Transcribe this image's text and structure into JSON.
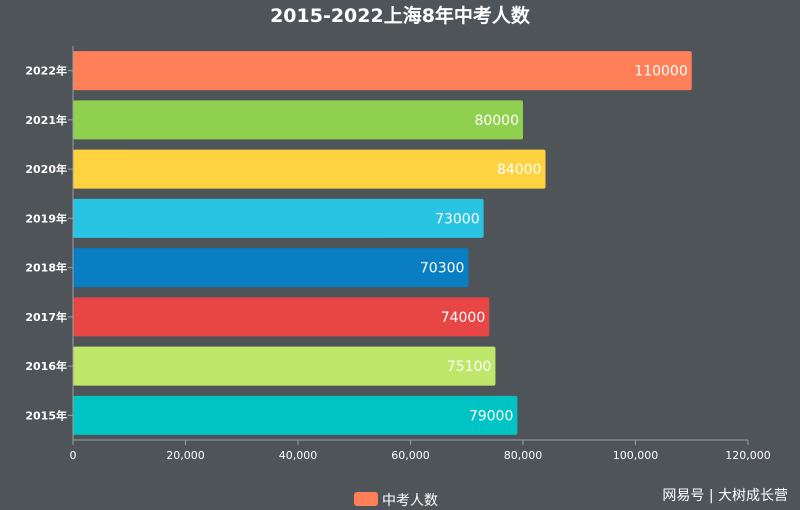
{
  "chart_data": {
    "type": "bar",
    "orientation": "horizontal",
    "title": "2015-2022上海8年中考人数",
    "categories": [
      "2022年",
      "2021年",
      "2020年",
      "2019年",
      "2018年",
      "2017年",
      "2016年",
      "2015年"
    ],
    "series": [
      {
        "name": "中考人数",
        "values": [
          110000,
          80000,
          84000,
          73000,
          70300,
          74000,
          75100,
          79000
        ],
        "colors": [
          "#ff7f59",
          "#8fd14f",
          "#ffd23f",
          "#29c4e3",
          "#0a7ec2",
          "#e84545",
          "#bfe86a",
          "#00c4c4"
        ]
      }
    ],
    "data_labels": [
      "110000",
      "80000",
      "84000",
      "73000",
      "70300",
      "74000",
      "75100",
      "79000"
    ],
    "x_ticks": [
      0,
      20000,
      40000,
      60000,
      80000,
      100000,
      120000
    ],
    "x_tick_labels": [
      "0",
      "20,000",
      "40,000",
      "60,000",
      "80,000",
      "100,000",
      "120,000"
    ],
    "xlim": [
      0,
      120000
    ],
    "grid": false,
    "legend": {
      "position": "bottom-center",
      "label": "中考人数",
      "color": "#ff7f59"
    }
  },
  "watermark": "网易号 | 大树成长营"
}
